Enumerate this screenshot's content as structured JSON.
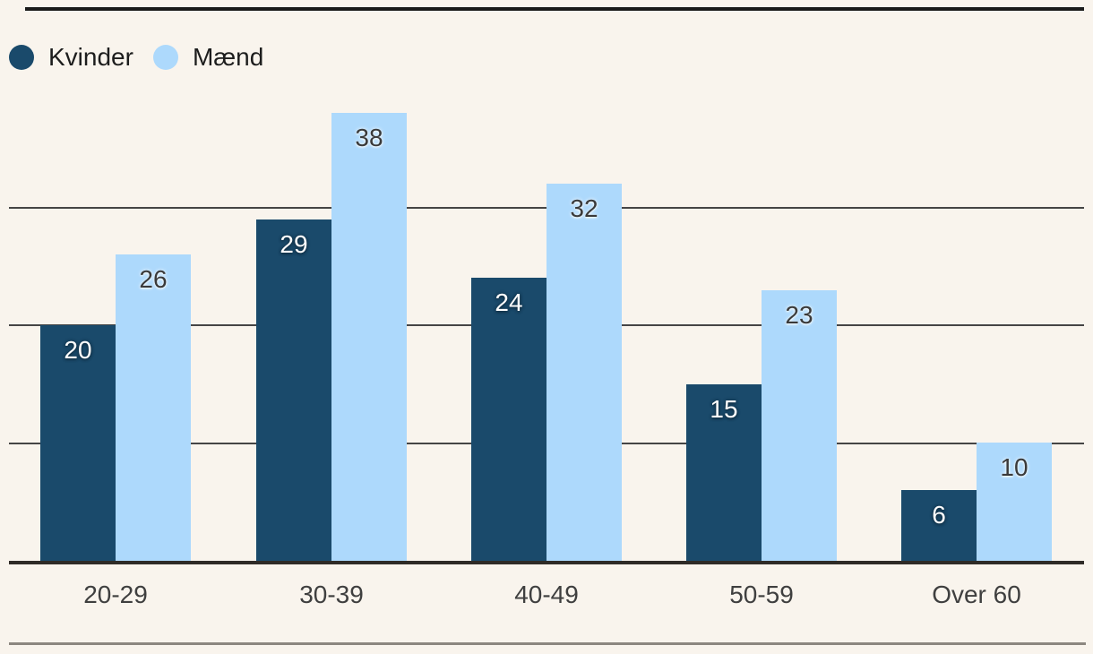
{
  "colors": {
    "background": "#F9F4ED",
    "kvinder": "#1A4A6B",
    "maend": "#ADD9FC",
    "gridline": "#454545",
    "baseline": "#2F2B27",
    "top_rule": "#1A1A1A",
    "bottom_rule": "#8C8780",
    "value_label_on_dark": "#FFFFFF",
    "value_label_on_light": "#3A3A3A",
    "category_label": "#3F3F3F",
    "legend_text": "#1D1D1D"
  },
  "chart_data": {
    "type": "bar",
    "categories": [
      "20-29",
      "30-39",
      "40-49",
      "50-59",
      "Over 60"
    ],
    "series": [
      {
        "name": "Kvinder",
        "color": "#1A4A6B",
        "values": [
          20,
          29,
          24,
          15,
          6
        ]
      },
      {
        "name": "Mænd",
        "color": "#ADD9FC",
        "values": [
          26,
          38,
          32,
          23,
          10
        ]
      }
    ],
    "ylim": [
      0,
      40
    ],
    "gridlines": [
      10,
      20,
      30
    ],
    "grid": "on",
    "y_axis_tick_labels": "none",
    "legend_position": "top-left",
    "value_labels": "inside-top",
    "xlabel": "",
    "ylabel": ""
  }
}
